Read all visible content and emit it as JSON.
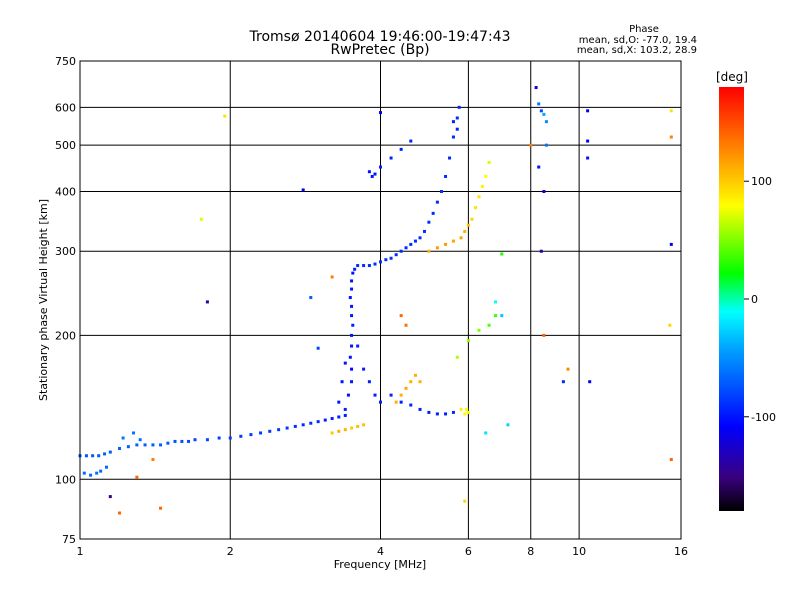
{
  "chart_data": {
    "type": "scatter",
    "title": "Tromsø 20140604 19:46:00-19:47:43",
    "subtitle": "RwPretec (Bp)",
    "stats": {
      "heading": "Phase",
      "line1": "mean, sd,O: -77.0, 19.4",
      "line2": "mean, sd,X: 103.2, 28.9"
    },
    "xlabel": "Frequency [MHz]",
    "ylabel": "Stationary phase Virtual Height [km]",
    "x_scale": "log",
    "y_scale": "log",
    "xlim": [
      1,
      16
    ],
    "ylim": [
      75,
      750
    ],
    "x_ticks": [
      1,
      2,
      4,
      6,
      8,
      10,
      16
    ],
    "x_tick_labels": [
      "1",
      "2",
      "4",
      "6",
      "8",
      "10",
      "16"
    ],
    "y_ticks": [
      75,
      100,
      200,
      300,
      400,
      500,
      600,
      750
    ],
    "y_tick_labels": [
      "75",
      "100",
      "200",
      "300",
      "400",
      "500",
      "600",
      "750"
    ],
    "grid": true,
    "colorbar": {
      "label": "[deg]",
      "range": [
        -180,
        180
      ],
      "ticks": [
        100,
        0,
        -100
      ],
      "tick_labels": [
        "100",
        "0",
        "-100"
      ],
      "colors": [
        "#000000",
        "#3a0080",
        "#0000ff",
        "#00a0ff",
        "#00ffff",
        "#00ff00",
        "#ffff00",
        "#ff8000",
        "#ff0000"
      ]
    },
    "series": [
      {
        "points": [
          [
            1.0,
            112,
            -75
          ],
          [
            1.03,
            112,
            -75
          ],
          [
            1.06,
            112,
            -72
          ],
          [
            1.09,
            112,
            -72
          ],
          [
            1.12,
            113,
            -70
          ],
          [
            1.15,
            114,
            -72
          ],
          [
            1.2,
            116,
            -70
          ],
          [
            1.25,
            117,
            -70
          ],
          [
            1.3,
            118,
            -68
          ],
          [
            1.35,
            118,
            -70
          ],
          [
            1.4,
            118,
            -70
          ],
          [
            1.45,
            118,
            -68
          ],
          [
            1.5,
            119,
            -72
          ],
          [
            1.55,
            120,
            -75
          ],
          [
            1.6,
            120,
            -75
          ],
          [
            1.65,
            120,
            -78
          ],
          [
            1.7,
            121,
            -80
          ],
          [
            1.8,
            121,
            -80
          ],
          [
            1.9,
            122,
            -82
          ],
          [
            2.0,
            122,
            -85
          ],
          [
            2.1,
            123,
            -85
          ],
          [
            2.2,
            124,
            -85
          ],
          [
            2.3,
            125,
            -85
          ],
          [
            2.4,
            126,
            -85
          ],
          [
            2.5,
            127,
            -85
          ],
          [
            2.6,
            128,
            -85
          ],
          [
            2.7,
            129,
            -88
          ],
          [
            2.8,
            130,
            -90
          ],
          [
            2.9,
            131,
            -90
          ],
          [
            3.0,
            132,
            -92
          ],
          [
            3.1,
            133,
            -95
          ],
          [
            3.2,
            134,
            -95
          ],
          [
            3.3,
            135,
            -95
          ],
          [
            3.4,
            136,
            -95
          ],
          [
            1.02,
            103,
            -65
          ],
          [
            1.05,
            102,
            -65
          ],
          [
            1.08,
            103,
            -62
          ],
          [
            1.1,
            104,
            -65
          ],
          [
            1.13,
            106,
            -65
          ],
          [
            1.22,
            122,
            -60
          ],
          [
            1.28,
            125,
            -60
          ],
          [
            1.32,
            121,
            -62
          ]
        ]
      },
      {
        "points": [
          [
            3.4,
            140,
            -95
          ],
          [
            3.45,
            150,
            -100
          ],
          [
            3.5,
            160,
            -100
          ],
          [
            3.5,
            170,
            -105
          ],
          [
            3.48,
            180,
            -100
          ],
          [
            3.5,
            190,
            -100
          ],
          [
            3.5,
            200,
            -100
          ],
          [
            3.52,
            210,
            -95
          ],
          [
            3.5,
            220,
            -100
          ],
          [
            3.5,
            230,
            -100
          ],
          [
            3.48,
            240,
            -100
          ],
          [
            3.5,
            250,
            -100
          ],
          [
            3.5,
            260,
            -100
          ],
          [
            3.52,
            270,
            -100
          ],
          [
            3.55,
            275,
            -95
          ],
          [
            3.6,
            280,
            -90
          ],
          [
            3.7,
            280,
            -90
          ],
          [
            3.8,
            280,
            -90
          ],
          [
            3.9,
            282,
            -90
          ],
          [
            4.0,
            285,
            -88
          ],
          [
            4.1,
            288,
            -88
          ],
          [
            4.2,
            290,
            -88
          ],
          [
            4.3,
            295,
            -90
          ],
          [
            4.4,
            300,
            -90
          ],
          [
            4.5,
            305,
            -90
          ],
          [
            4.6,
            310,
            -90
          ],
          [
            4.7,
            315,
            -90
          ],
          [
            4.8,
            320,
            -90
          ],
          [
            4.9,
            330,
            -90
          ],
          [
            5.0,
            345,
            -90
          ],
          [
            5.1,
            360,
            -90
          ],
          [
            5.2,
            380,
            -90
          ],
          [
            5.3,
            400,
            -90
          ],
          [
            5.4,
            430,
            -90
          ],
          [
            5.5,
            470,
            -90
          ],
          [
            5.6,
            520,
            -90
          ],
          [
            5.7,
            570,
            -90
          ],
          [
            5.75,
            600,
            -90
          ],
          [
            3.3,
            145,
            -100
          ],
          [
            3.35,
            160,
            -100
          ],
          [
            3.4,
            175,
            -100
          ],
          [
            3.6,
            190,
            -95
          ],
          [
            3.7,
            170,
            -95
          ],
          [
            3.8,
            160,
            -95
          ],
          [
            3.9,
            150,
            -95
          ],
          [
            4.0,
            145,
            -95
          ],
          [
            4.2,
            150,
            -95
          ],
          [
            4.4,
            145,
            -95
          ],
          [
            4.6,
            143,
            -95
          ],
          [
            4.8,
            140,
            -95
          ],
          [
            5.0,
            138,
            -95
          ],
          [
            5.2,
            137,
            -95
          ],
          [
            5.4,
            137,
            -95
          ],
          [
            5.6,
            138,
            -90
          ],
          [
            3.8,
            440,
            -100
          ],
          [
            3.85,
            430,
            -100
          ],
          [
            3.9,
            435,
            -100
          ],
          [
            4.0,
            450,
            -95
          ],
          [
            4.2,
            470,
            -95
          ],
          [
            4.4,
            490,
            -95
          ],
          [
            4.6,
            510,
            -95
          ],
          [
            5.6,
            560,
            -95
          ],
          [
            5.7,
            540,
            -95
          ]
        ]
      },
      {
        "points": [
          [
            3.2,
            125,
            100
          ],
          [
            3.3,
            126,
            110
          ],
          [
            3.4,
            127,
            110
          ],
          [
            3.5,
            128,
            100
          ],
          [
            3.6,
            129,
            105
          ],
          [
            3.7,
            130,
            105
          ],
          [
            4.3,
            145,
            110
          ],
          [
            4.4,
            150,
            110
          ],
          [
            4.5,
            155,
            115
          ],
          [
            4.6,
            160,
            110
          ],
          [
            4.7,
            165,
            110
          ],
          [
            5.0,
            300,
            110
          ],
          [
            5.2,
            305,
            120
          ],
          [
            5.4,
            310,
            120
          ],
          [
            5.6,
            315,
            115
          ],
          [
            5.8,
            320,
            115
          ],
          [
            5.9,
            330,
            110
          ],
          [
            6.0,
            340,
            105
          ],
          [
            6.1,
            350,
            95
          ],
          [
            6.2,
            370,
            90
          ],
          [
            6.3,
            390,
            90
          ],
          [
            6.4,
            410,
            85
          ],
          [
            6.5,
            430,
            80
          ],
          [
            6.6,
            460,
            70
          ],
          [
            4.4,
            220,
            140
          ],
          [
            4.5,
            210,
            135
          ],
          [
            4.8,
            160,
            110
          ]
        ]
      },
      {
        "points": [
          [
            5.9,
            137,
            80
          ],
          [
            5.95,
            140,
            80
          ],
          [
            6.0,
            138,
            75
          ],
          [
            5.8,
            140,
            85
          ],
          [
            5.7,
            180,
            60
          ],
          [
            6.0,
            195,
            55
          ],
          [
            6.3,
            205,
            50
          ],
          [
            6.6,
            210,
            40
          ],
          [
            6.8,
            220,
            35
          ],
          [
            7.0,
            296,
            30
          ],
          [
            6.8,
            235,
            -10
          ],
          [
            7.0,
            220,
            -30
          ],
          [
            6.5,
            125,
            -20
          ],
          [
            7.2,
            130,
            -25
          ],
          [
            8.3,
            610,
            -60
          ],
          [
            8.5,
            580,
            -40
          ],
          [
            8.6,
            560,
            -50
          ],
          [
            8.2,
            660,
            -120
          ],
          [
            8.4,
            590,
            -80
          ],
          [
            8.6,
            500,
            -60
          ],
          [
            8.3,
            450,
            -100
          ],
          [
            10.4,
            590,
            -110
          ],
          [
            10.4,
            510,
            -110
          ],
          [
            10.4,
            470,
            -100
          ],
          [
            15.3,
            590,
            90
          ],
          [
            15.3,
            520,
            130
          ],
          [
            15.3,
            310,
            -110
          ],
          [
            15.3,
            110,
            140
          ],
          [
            15.2,
            210,
            95
          ],
          [
            8.0,
            500,
            130
          ],
          [
            8.5,
            200,
            140
          ],
          [
            8.5,
            400,
            -110
          ],
          [
            8.4,
            300,
            -130
          ],
          [
            9.3,
            160,
            -90
          ],
          [
            9.5,
            170,
            125
          ],
          [
            10.5,
            160,
            -110
          ],
          [
            5.9,
            90,
            95
          ],
          [
            1.75,
            350,
            70
          ],
          [
            1.8,
            235,
            -140
          ],
          [
            1.95,
            575,
            90
          ],
          [
            2.8,
            403,
            -110
          ],
          [
            1.3,
            101,
            140
          ],
          [
            1.4,
            110,
            130
          ],
          [
            1.45,
            87,
            140
          ],
          [
            1.2,
            85,
            140
          ],
          [
            1.15,
            92,
            -150
          ],
          [
            2.9,
            240,
            -70
          ],
          [
            3.2,
            265,
            130
          ],
          [
            3.0,
            188,
            -80
          ],
          [
            4.0,
            585,
            -110
          ]
        ]
      }
    ]
  }
}
